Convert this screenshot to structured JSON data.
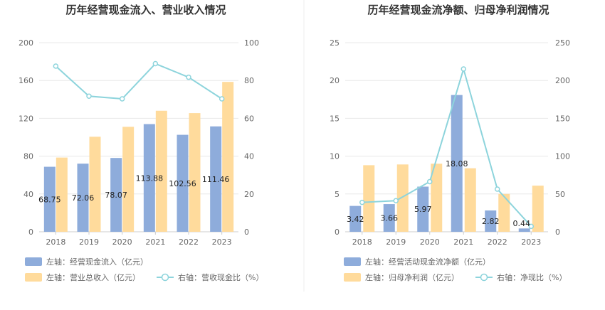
{
  "colors": {
    "bar_primary": "#8eacdb",
    "bar_secondary": "#ffdb9c",
    "line": "#8dd4dc",
    "grid": "#e8e8e8",
    "axis": "#cccccc",
    "divider": "#eeeeee"
  },
  "chart_data": [
    {
      "type": "bar",
      "title": "历年经营现金流入、营业收入情况",
      "categories": [
        "2018",
        "2019",
        "2020",
        "2021",
        "2022",
        "2023"
      ],
      "left_axis": {
        "ylim": [
          0,
          200
        ],
        "ticks": [
          "0",
          "40",
          "80",
          "120",
          "160",
          "200"
        ]
      },
      "right_axis": {
        "ylim": [
          0,
          100
        ],
        "ticks": [
          "0",
          "20",
          "40",
          "60",
          "80",
          "100"
        ]
      },
      "series": [
        {
          "name": "左轴：经营现金流入（亿元）",
          "kind": "bar",
          "axis": "left",
          "values": [
            68.75,
            72.06,
            78.07,
            113.88,
            102.56,
            111.46
          ],
          "labels": [
            "68.75",
            "72.06",
            "78.07",
            "113.88",
            "102.56",
            "111.46"
          ]
        },
        {
          "name": "左轴：营业总收入（亿元）",
          "kind": "bar",
          "axis": "left",
          "values": [
            78.5,
            100.5,
            111.0,
            128.0,
            125.5,
            158.5
          ]
        },
        {
          "name": "右轴：营收现金比（%）",
          "kind": "line",
          "axis": "right",
          "values": [
            87.6,
            71.7,
            70.3,
            88.9,
            81.7,
            70.3
          ]
        }
      ],
      "grid": true,
      "legend_position": "bottom"
    },
    {
      "type": "bar",
      "title": "历年经营现金流净额、归母净利润情况",
      "categories": [
        "2018",
        "2019",
        "2020",
        "2021",
        "2022",
        "2023"
      ],
      "left_axis": {
        "ylim": [
          0,
          25
        ],
        "ticks": [
          "0",
          "5",
          "10",
          "15",
          "20",
          "25"
        ]
      },
      "right_axis": {
        "ylim": [
          0,
          250
        ],
        "ticks": [
          "0",
          "50",
          "100",
          "150",
          "200",
          "250"
        ]
      },
      "series": [
        {
          "name": "左轴：经营活动现金流净额（亿元）",
          "kind": "bar",
          "axis": "left",
          "values": [
            3.42,
            3.66,
            5.97,
            18.08,
            2.82,
            0.44
          ],
          "labels": [
            "3.42",
            "3.66",
            "5.97",
            "18.08",
            "2.82",
            "0.44"
          ]
        },
        {
          "name": "左轴：归母净利润（亿元）",
          "kind": "bar",
          "axis": "left",
          "values": [
            8.8,
            8.9,
            9.0,
            8.4,
            5.0,
            6.1
          ]
        },
        {
          "name": "右轴：净现比（%）",
          "kind": "line",
          "axis": "right",
          "values": [
            38.9,
            41.1,
            66.3,
            215.2,
            56.4,
            7.2
          ]
        }
      ],
      "grid": true,
      "legend_position": "bottom"
    }
  ]
}
